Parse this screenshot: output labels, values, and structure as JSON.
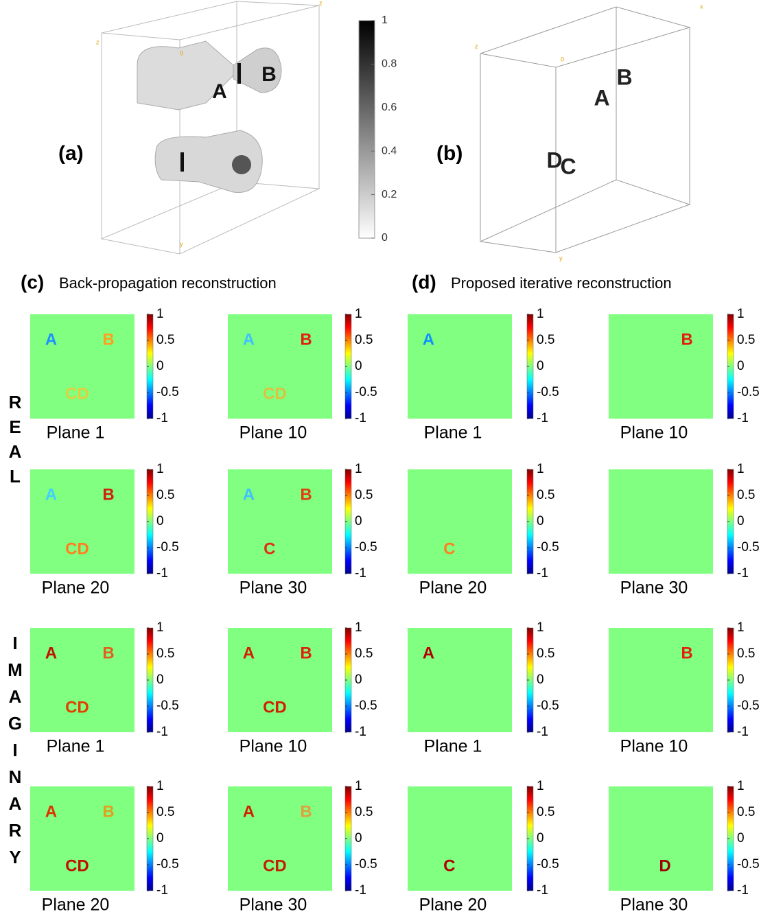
{
  "panel_a": {
    "label": "(a)",
    "axis_labels": [
      "z",
      "0",
      "z",
      "y"
    ],
    "letters": [
      "A",
      "B"
    ],
    "colorbar": {
      "lim": [
        0,
        1
      ],
      "ticks": [
        0,
        0.2,
        0.4,
        0.6,
        0.8,
        1
      ]
    }
  },
  "panel_b": {
    "label": "(b)",
    "axis_labels": [
      "z",
      "0",
      "x",
      "y"
    ],
    "letters": [
      "A",
      "B",
      "D",
      "C"
    ]
  },
  "panel_c": {
    "label": "(c)",
    "title": "Back-propagation reconstruction"
  },
  "panel_d": {
    "label": "(d)",
    "title": "Proposed iterative reconstruction"
  },
  "row_labels": [
    "REAL",
    "IMAGINARY"
  ],
  "colorbar": {
    "lim": [
      -1,
      1
    ],
    "ticks": [
      -1,
      -0.5,
      0,
      0.5,
      1
    ]
  },
  "background": "#80ff80",
  "tiles": [
    {
      "caption": "Plane 1",
      "letters": [
        {
          "text": "A",
          "color": "#1e90ff"
        },
        {
          "text": "B",
          "color": "#ffa020"
        },
        {
          "text": "CD",
          "color": "#e0d040"
        }
      ]
    },
    {
      "caption": "Plane 10",
      "letters": [
        {
          "text": "A",
          "color": "#40c0ff"
        },
        {
          "text": "B",
          "color": "#e02010"
        },
        {
          "text": "CD",
          "color": "#e0c040"
        }
      ]
    },
    {
      "caption": "Plane 1",
      "letters": [
        {
          "text": "A",
          "color": "#1090ff"
        }
      ]
    },
    {
      "caption": "Plane 10",
      "letters": [
        {
          "text": "B",
          "color": "#e02010"
        }
      ]
    },
    {
      "caption": "Plane 20",
      "letters": [
        {
          "text": "A",
          "color": "#40d0ff"
        },
        {
          "text": "B",
          "color": "#d02010"
        },
        {
          "text": "CD",
          "color": "#ff8020"
        }
      ]
    },
    {
      "caption": "Plane 30",
      "letters": [
        {
          "text": "A",
          "color": "#40c0ff"
        },
        {
          "text": "B",
          "color": "#e04010"
        },
        {
          "text": "C",
          "color": "#e03010"
        }
      ]
    },
    {
      "caption": "Plane 20",
      "letters": [
        {
          "text": "C",
          "color": "#ff8020"
        }
      ]
    },
    {
      "caption": "Plane 30",
      "letters": []
    },
    {
      "caption": "Plane 1",
      "letters": [
        {
          "text": "A",
          "color": "#c01000"
        },
        {
          "text": "B",
          "color": "#e06020"
        },
        {
          "text": "CD",
          "color": "#e04000"
        }
      ]
    },
    {
      "caption": "Plane 10",
      "letters": [
        {
          "text": "A",
          "color": "#d02000"
        },
        {
          "text": "B",
          "color": "#e02010"
        },
        {
          "text": "CD",
          "color": "#d02000"
        }
      ]
    },
    {
      "caption": "Plane 1",
      "letters": [
        {
          "text": "A",
          "color": "#b00000"
        }
      ]
    },
    {
      "caption": "Plane 10",
      "letters": [
        {
          "text": "B",
          "color": "#e02010"
        }
      ]
    },
    {
      "caption": "Plane 20",
      "letters": [
        {
          "text": "A",
          "color": "#e03000"
        },
        {
          "text": "B",
          "color": "#e0a020"
        },
        {
          "text": "CD",
          "color": "#c01000"
        }
      ]
    },
    {
      "caption": "Plane 30",
      "letters": [
        {
          "text": "A",
          "color": "#d02000"
        },
        {
          "text": "B",
          "color": "#e0a040"
        },
        {
          "text": "CD",
          "color": "#c02000"
        }
      ]
    },
    {
      "caption": "Plane 20",
      "letters": [
        {
          "text": "C",
          "color": "#b00000"
        }
      ]
    },
    {
      "caption": "Plane 30",
      "letters": [
        {
          "text": "D",
          "color": "#a00000"
        }
      ]
    }
  ]
}
